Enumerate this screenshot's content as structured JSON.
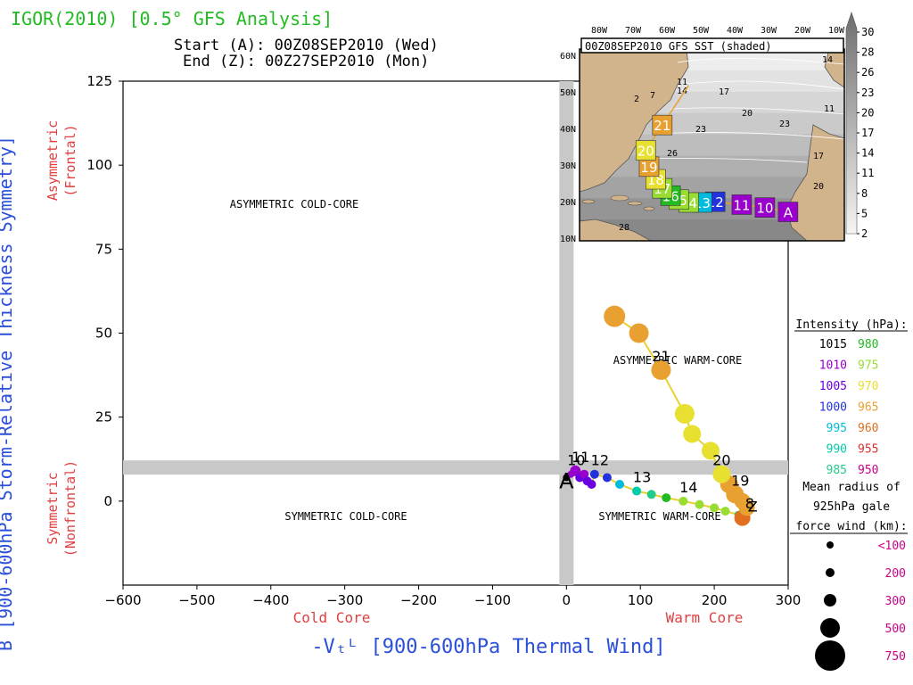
{
  "header": {
    "title": "IGOR(2010) [0.5° GFS Analysis]",
    "start": "Start (A): 00Z08SEP2010 (Wed)",
    "end": "End (Z): 00Z27SEP2010 (Mon)"
  },
  "axes": {
    "ylabel": "B [900-600hPa Storm-Relative Thickness Symmetry]",
    "ylabel_top": [
      "Asymmetric",
      "(Frontal)"
    ],
    "ylabel_bottom": [
      "Symmetric",
      "(Nonfrontal)"
    ],
    "xlabel": "-Vₜᴸ [900-600hPa Thermal Wind]",
    "xlabel_left": "Cold Core",
    "xlabel_right": "Warm Core"
  },
  "quadrants": {
    "ul": "ASYMMETRIC COLD-CORE",
    "ur": "ASYMMETRIC WARM-CORE",
    "ll": "SYMMETRIC COLD-CORE",
    "lr": "SYMMETRIC WARM-CORE"
  },
  "legend": {
    "intensity_title": "Intensity (hPa):",
    "intensity_rows": [
      {
        "a": "1015",
        "ca": "#000000",
        "b": "980",
        "cb": "#22bb22"
      },
      {
        "a": "1010",
        "ca": "#9900cc",
        "b": "975",
        "cb": "#99dd33"
      },
      {
        "a": "1005",
        "ca": "#6a00e0",
        "b": "970",
        "cb": "#e8e030"
      },
      {
        "a": "1000",
        "ca": "#2233dd",
        "b": "965",
        "cb": "#e8a030"
      },
      {
        "a": "995",
        "ca": "#00bbdd",
        "b": "960",
        "cb": "#e07020"
      },
      {
        "a": "990",
        "ca": "#00ccaa",
        "b": "955",
        "cb": "#e03030"
      },
      {
        "a": "985",
        "ca": "#22cc88",
        "b": "950",
        "cb": "#cc0088"
      }
    ],
    "radius_title": [
      "Mean radius of",
      "925hPa gale",
      "force wind (km):"
    ],
    "radius_rows": [
      {
        "label": "<100",
        "r": 4
      },
      {
        "label": "200",
        "r": 5
      },
      {
        "label": "300",
        "r": 7
      },
      {
        "label": "500",
        "r": 11
      },
      {
        "label": "750",
        "r": 17
      }
    ],
    "radius_color": "#cc0088"
  },
  "inset": {
    "title": "00Z08SEP2010 GFS SST (shaded)",
    "lon_labels": [
      "80W",
      "70W",
      "60W",
      "50W",
      "40W",
      "30W",
      "20W",
      "10W"
    ],
    "lat_labels": [
      "60N",
      "50N",
      "40N",
      "30N",
      "20N",
      "10N"
    ],
    "colorbar": [
      "30",
      "28",
      "26",
      "23",
      "20",
      "17",
      "14",
      "11",
      "8",
      "5",
      "2"
    ],
    "contour_labels": [
      "11",
      "14",
      "17",
      "20",
      "23",
      "26",
      "28",
      "11",
      "14",
      "17",
      "20",
      "23",
      "7",
      "2"
    ],
    "track": [
      {
        "day": "A",
        "lon": -22,
        "lat": 15
      },
      {
        "day": "10",
        "lon": -29,
        "lat": 16.2
      },
      {
        "day": "11",
        "lon": -36,
        "lat": 17.0
      },
      {
        "day": "12",
        "lon": -44,
        "lat": 17.8
      },
      {
        "day": "13",
        "lon": -48,
        "lat": 17.6
      },
      {
        "day": "14",
        "lon": -52,
        "lat": 17.6
      },
      {
        "day": "15",
        "lon": -55,
        "lat": 18.4
      },
      {
        "day": "16",
        "lon": -57.5,
        "lat": 19.5
      },
      {
        "day": "17",
        "lon": -60,
        "lat": 21.5
      },
      {
        "day": "18",
        "lon": -62,
        "lat": 24.0
      },
      {
        "day": "19",
        "lon": -64,
        "lat": 27.5
      },
      {
        "day": "20",
        "lon": -65,
        "lat": 32.0
      },
      {
        "day": "21",
        "lon": -60,
        "lat": 39.0
      },
      {
        "day": "",
        "lon": -52,
        "lat": 50.0
      }
    ]
  },
  "chart_data": {
    "type": "scatter",
    "title": "IGOR(2010) [0.5° GFS Analysis]",
    "xlabel": "-Vt^L [900-600hPa Thermal Wind]",
    "ylabel": "B [900-600hPa Storm-Relative Thickness Symmetry]",
    "xlim": [
      -600,
      300
    ],
    "ylim": [
      -25,
      125
    ],
    "xticks": [
      -600,
      -500,
      -400,
      -300,
      -200,
      -100,
      0,
      100,
      200,
      300
    ],
    "yticks": [
      0,
      25,
      50,
      75,
      100,
      125
    ],
    "reference_lines": {
      "x": 0,
      "y": 10
    },
    "series": [
      {
        "name": "IGOR(2010)",
        "points": [
          {
            "x": 0,
            "y": 7,
            "label": "A",
            "color": "#000000",
            "size": 4
          },
          {
            "x": 6,
            "y": 8,
            "label": "10",
            "color": "#9900cc",
            "size": 4
          },
          {
            "x": 12,
            "y": 9,
            "label": "11",
            "color": "#9900cc",
            "size": 6
          },
          {
            "x": 18,
            "y": 7,
            "label": "",
            "color": "#6a00e0",
            "size": 5
          },
          {
            "x": 24,
            "y": 8,
            "label": "",
            "color": "#9900cc",
            "size": 5
          },
          {
            "x": 28,
            "y": 6,
            "label": "",
            "color": "#6a00e0",
            "size": 5
          },
          {
            "x": 34,
            "y": 5,
            "label": "",
            "color": "#6a00e0",
            "size": 5
          },
          {
            "x": 38,
            "y": 8,
            "label": "12",
            "color": "#2233dd",
            "size": 5
          },
          {
            "x": 55,
            "y": 7,
            "label": "",
            "color": "#2233dd",
            "size": 5
          },
          {
            "x": 72,
            "y": 5,
            "label": "",
            "color": "#00bbdd",
            "size": 5
          },
          {
            "x": 95,
            "y": 3,
            "label": "13",
            "color": "#00ccaa",
            "size": 5
          },
          {
            "x": 115,
            "y": 2,
            "label": "",
            "color": "#22cc88",
            "size": 5
          },
          {
            "x": 135,
            "y": 1,
            "label": "",
            "color": "#22bb22",
            "size": 5
          },
          {
            "x": 158,
            "y": 0,
            "label": "14",
            "color": "#99dd33",
            "size": 5
          },
          {
            "x": 180,
            "y": -1,
            "label": "",
            "color": "#99dd33",
            "size": 5
          },
          {
            "x": 200,
            "y": -2,
            "label": "",
            "color": "#99dd33",
            "size": 5
          },
          {
            "x": 215,
            "y": -3,
            "label": "",
            "color": "#99dd33",
            "size": 5
          },
          {
            "x": 232,
            "y": -4,
            "label": "",
            "color": "#22cc88",
            "size": 4
          },
          {
            "x": 238,
            "y": -5,
            "label": "",
            "color": "#e07020",
            "size": 9
          },
          {
            "x": 244,
            "y": -2,
            "label": "",
            "color": "#e8a030",
            "size": 9
          },
          {
            "x": 238,
            "y": 0,
            "label": "",
            "color": "#e8a030",
            "size": 9
          },
          {
            "x": 228,
            "y": 2,
            "label": "19",
            "color": "#e8a030",
            "size": 10
          },
          {
            "x": 220,
            "y": 5,
            "label": "",
            "color": "#e8a030",
            "size": 10
          },
          {
            "x": 210,
            "y": 8,
            "label": "20",
            "color": "#e8e030",
            "size": 10
          },
          {
            "x": 195,
            "y": 15,
            "label": "",
            "color": "#e8e030",
            "size": 10
          },
          {
            "x": 170,
            "y": 20,
            "label": "",
            "color": "#e8e030",
            "size": 10
          },
          {
            "x": 160,
            "y": 26,
            "label": "",
            "color": "#e8e030",
            "size": 11
          },
          {
            "x": 128,
            "y": 39,
            "label": "21",
            "color": "#e8a030",
            "size": 11
          },
          {
            "x": 98,
            "y": 50,
            "label": "",
            "color": "#e8a030",
            "size": 11
          },
          {
            "x": 65,
            "y": 55,
            "label": "",
            "color": "#e8a030",
            "size": 12
          }
        ]
      }
    ],
    "extra_labels": [
      {
        "x": 252,
        "y": -1,
        "text": "Z"
      },
      {
        "x": 248,
        "y": 0,
        "text": "8"
      }
    ]
  }
}
